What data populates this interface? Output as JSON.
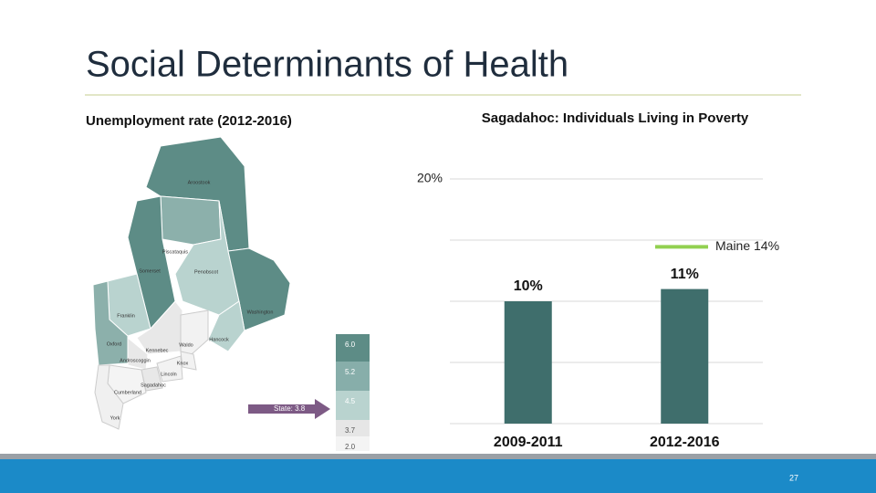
{
  "slide": {
    "title": "Social Determinants of Health",
    "page_number": "27"
  },
  "map": {
    "title": "Unemployment rate (2012-2016)",
    "counties": [
      "Aroostook",
      "Piscataquis",
      "Somerset",
      "Penobscot",
      "Washington",
      "Hancock",
      "Franklin",
      "Oxford",
      "Kennebec",
      "Waldo",
      "Androscoggin",
      "Knox",
      "Lincoln",
      "Sagadahoc",
      "Cumberland",
      "York"
    ],
    "legend": [
      "6.0",
      "5.2",
      "4.5",
      "3.7",
      "2.0"
    ],
    "state_label": "State: 3.8"
  },
  "chart_data": {
    "type": "bar",
    "title": "Sagadahoc: Individuals Living in Poverty",
    "categories": [
      "2009-2011",
      "2012-2016"
    ],
    "values": [
      10,
      11
    ],
    "value_labels": [
      "10%",
      "11%"
    ],
    "color": "#3f6e6c",
    "ylim": [
      0,
      20
    ],
    "yticks": [
      {
        "value": 20,
        "label": "20%"
      }
    ],
    "gridlines": [
      0,
      5,
      10,
      15,
      20
    ],
    "grid": true,
    "reference": {
      "label": "Maine 14%",
      "value": 14,
      "color": "#92d050"
    }
  }
}
